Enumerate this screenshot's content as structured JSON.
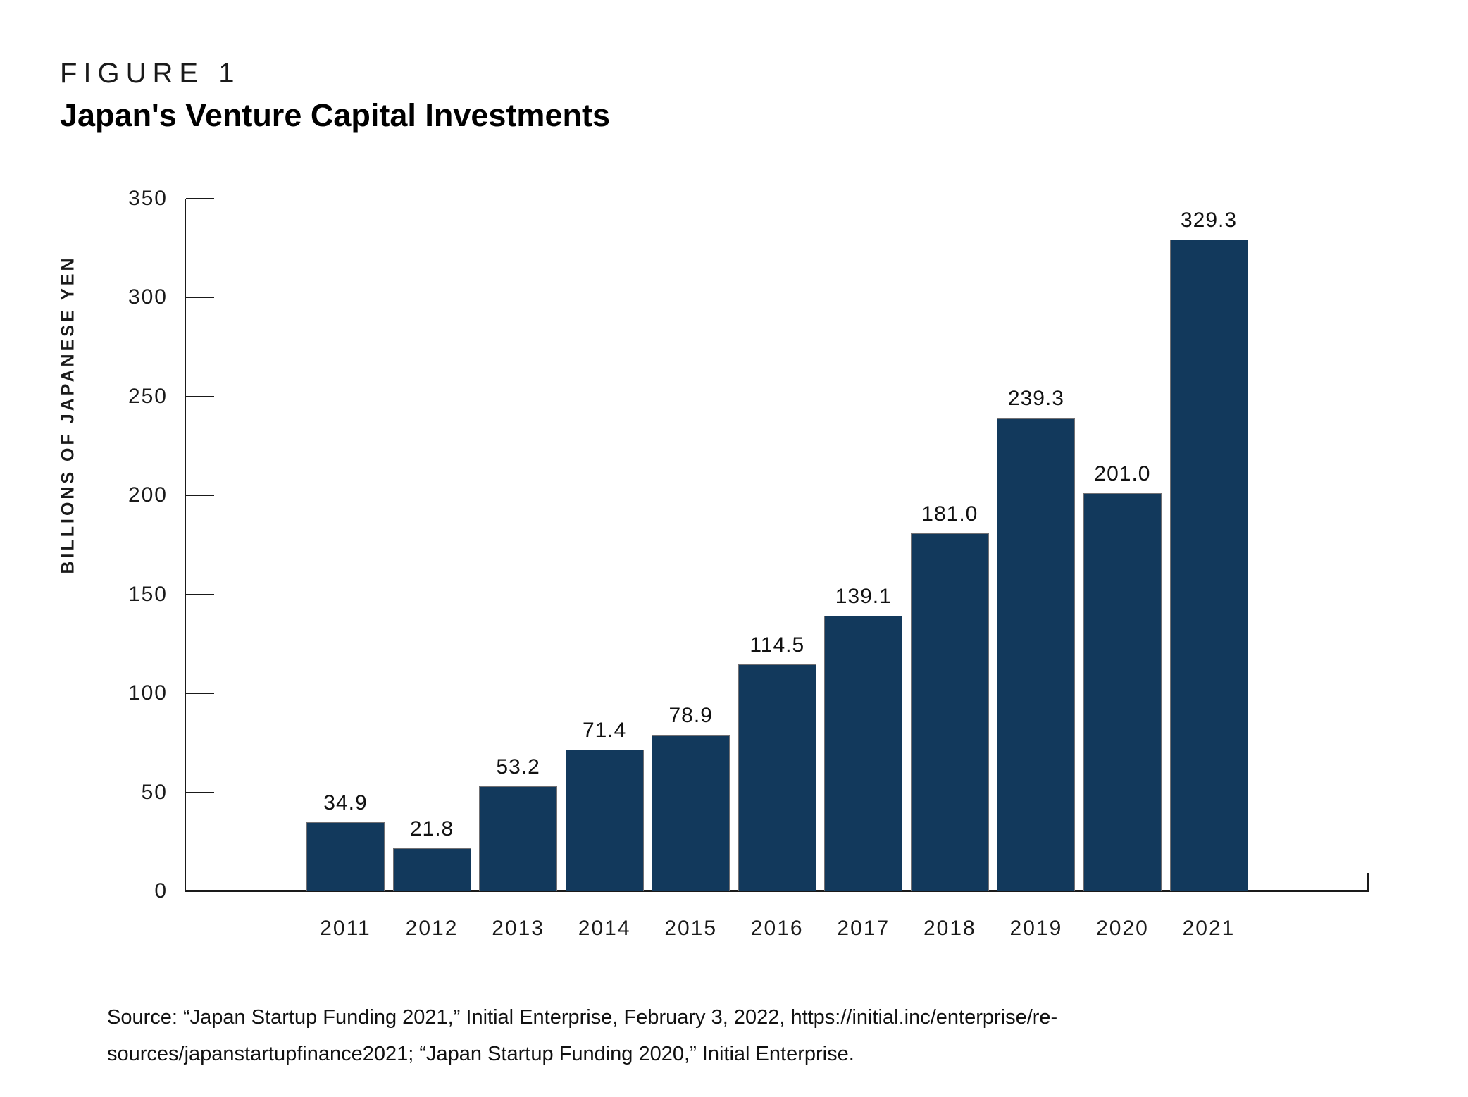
{
  "figure": {
    "label": "FIGURE 1",
    "title": "Japan's Venture Capital Investments"
  },
  "chart_data": {
    "type": "bar",
    "title": "Japan's Venture Capital Investments",
    "categories": [
      "2011",
      "2012",
      "2013",
      "2014",
      "2015",
      "2016",
      "2017",
      "2018",
      "2019",
      "2020",
      "2021"
    ],
    "values": [
      34.9,
      21.8,
      53.2,
      71.4,
      78.9,
      114.5,
      139.1,
      181.0,
      239.3,
      201.0,
      329.3
    ],
    "value_labels": [
      "34.9",
      "21.8",
      "53.2",
      "71.4",
      "78.9",
      "114.5",
      "139.1",
      "181.0",
      "239.3",
      "201.0",
      "329.3"
    ],
    "xlabel": "",
    "ylabel": "BILLIONS OF JAPANESE YEN",
    "ylim": [
      0,
      350
    ],
    "yticks": [
      0,
      50,
      100,
      150,
      200,
      250,
      300,
      350
    ],
    "grid": false,
    "legend": null,
    "bar_color": "#12395c",
    "axis_color": "#1a1a1a"
  },
  "source": {
    "line1": "Source: “Japan Startup Funding 2021,” Initial Enterprise, February 3, 2022, https://initial.inc/enterprise/re-",
    "line2": "sources/japanstartupfinance2021; “Japan Startup Funding 2020,” Initial Enterprise."
  }
}
